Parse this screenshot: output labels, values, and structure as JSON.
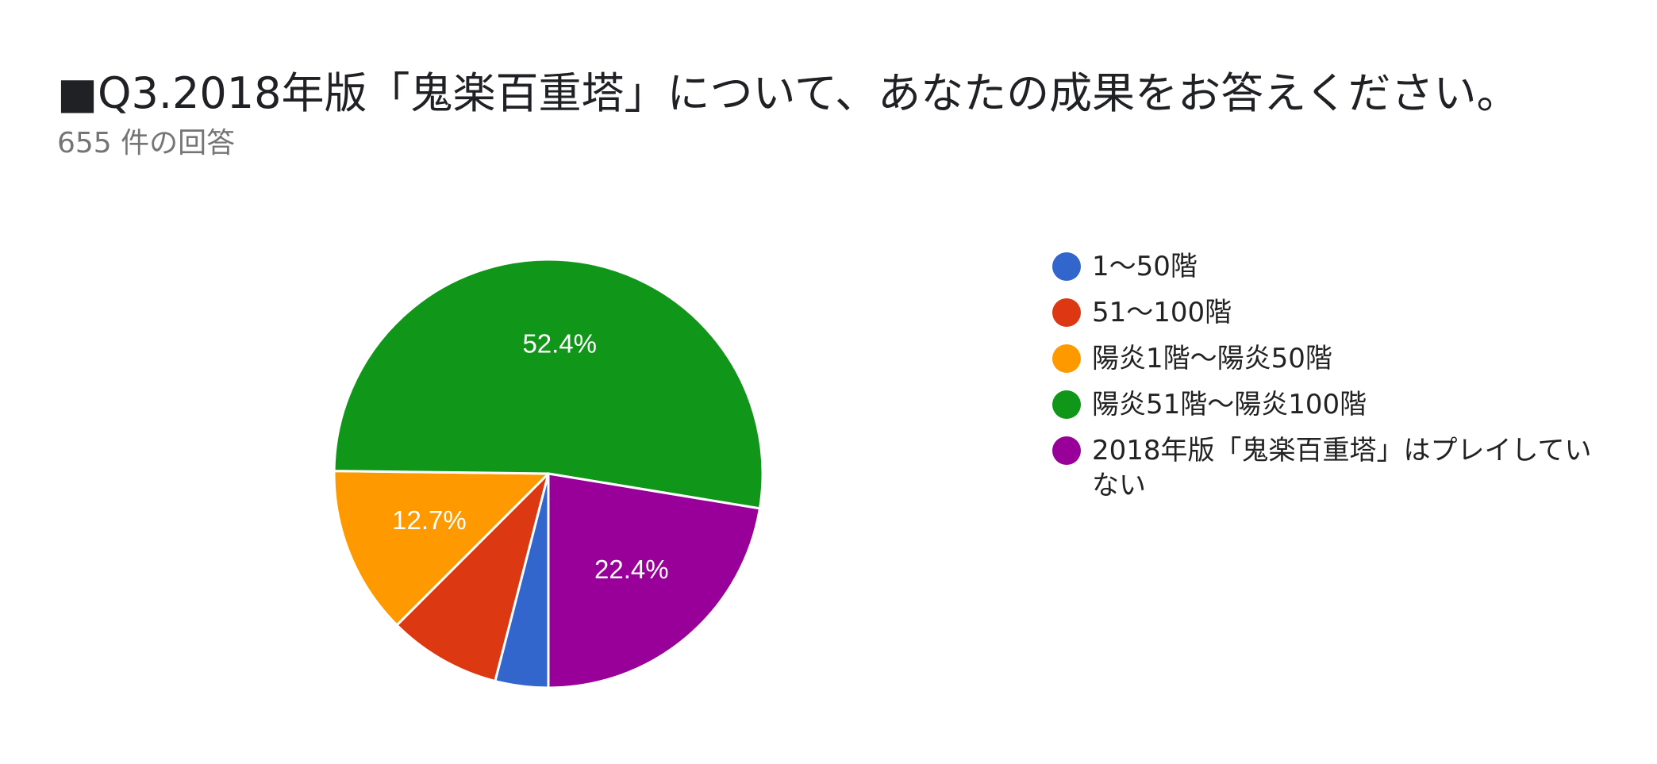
{
  "title": "■Q3.2018年版「鬼楽百重塔」について、あなたの成果をお答えください。",
  "subtitle": "655 件の回答",
  "chart_data": {
    "type": "pie",
    "categories": [
      "1〜50階",
      "51〜100階",
      "陽炎1階〜陽炎50階",
      "陽炎51階〜陽炎100階",
      "2018年版「鬼楽百重塔」はプレイしていない"
    ],
    "values": [
      4.0,
      8.5,
      12.7,
      52.4,
      22.4
    ],
    "colors": [
      "#3366cc",
      "#dc3912",
      "#ff9900",
      "#109618",
      "#990099"
    ],
    "data_labels": [
      "",
      "",
      "12.7%",
      "52.4%",
      "22.4%"
    ],
    "start_angle_deg": 90,
    "direction": "clockwise",
    "legend_position": "right",
    "grid": false
  }
}
